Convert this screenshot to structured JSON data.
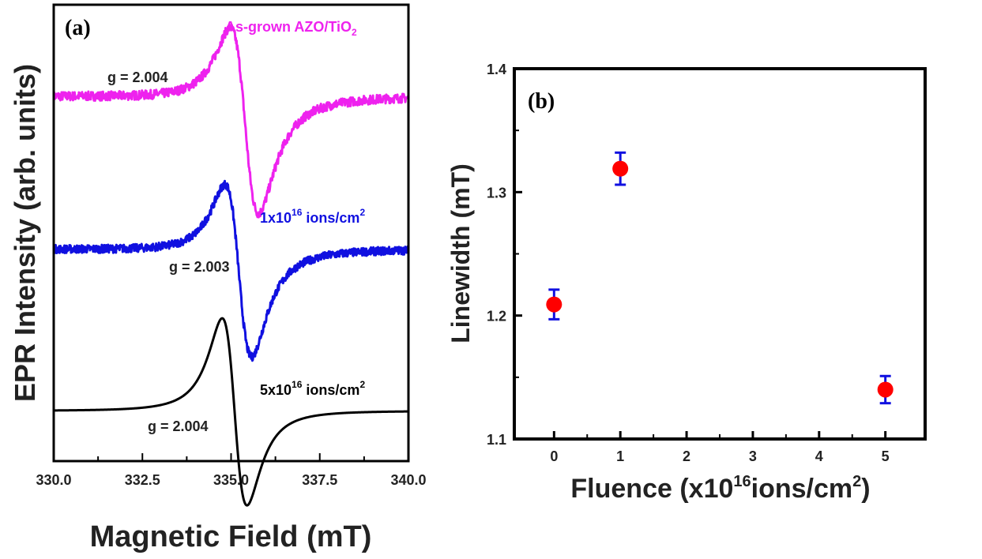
{
  "chart_data": [
    {
      "type": "line",
      "panel_label": "(a)",
      "xlabel": "Magnetic Field (mT)",
      "ylabel": "EPR Intensity (arb. units)",
      "xlim": [
        330.0,
        340.0
      ],
      "xticks": [
        "330.0",
        "332.5",
        "335.0",
        "337.5",
        "340.0"
      ],
      "yticks": [],
      "series": [
        {
          "name": "As-grown AZO/TiO₂",
          "label_parts": [
            "As-grown AZO/TiO",
            "2"
          ],
          "g_label": "g = 2.004",
          "color": "#ee22ee",
          "baseline": 0.8,
          "peak_field": 335.0,
          "peak_value": 0.98,
          "trough_field": 335.8,
          "trough_value": 0.49,
          "noise": 0.01
        },
        {
          "name": "1x10¹⁶ ions/cm²",
          "label_parts": [
            "1x10",
            "16",
            " ions/cm",
            "2"
          ],
          "g_label": "g = 2.003",
          "color": "#1010e0",
          "baseline": 0.465,
          "peak_field": 334.85,
          "peak_value": 0.635,
          "trough_field": 335.6,
          "trough_value": 0.18,
          "noise": 0.009
        },
        {
          "name": "5x10¹⁶ ions/cm²",
          "label_parts": [
            "5x10",
            "16",
            " ions/cm",
            "2"
          ],
          "g_label": "g = 2.004",
          "color": "#000000",
          "baseline": 0.11,
          "peak_field": 334.75,
          "peak_value": 0.355,
          "trough_field": 335.45,
          "trough_value": -0.14,
          "noise": 0.0
        }
      ]
    },
    {
      "type": "scatter",
      "panel_label": "(b)",
      "xlabel_parts": [
        "Fluence (x10",
        "16",
        "ions/cm",
        "2",
        ")"
      ],
      "ylabel": "Linewidth (mT)",
      "xlim": [
        -0.6,
        5.6
      ],
      "ylim": [
        1.1,
        1.4
      ],
      "xticks": [
        "0",
        "1",
        "2",
        "3",
        "4",
        "5"
      ],
      "yticks": [
        "1.1",
        "1.2",
        "1.3",
        "1.4"
      ],
      "marker_color": "#ff0000",
      "errorbar_color": "#1010e0",
      "points": [
        {
          "x": 0,
          "y": 1.209,
          "err": 0.012
        },
        {
          "x": 1,
          "y": 1.319,
          "err": 0.013
        },
        {
          "x": 5,
          "y": 1.14,
          "err": 0.011
        }
      ]
    }
  ]
}
